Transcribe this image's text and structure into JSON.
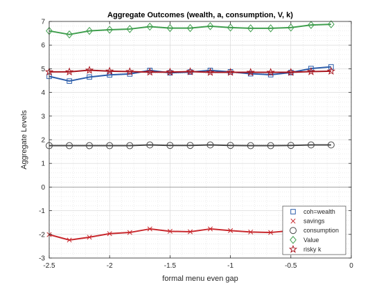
{
  "chart_data": {
    "type": "line",
    "title": "Aggregate Outcomes (wealth, a, consumption, V, k)",
    "xlabel": "formal menu even gap",
    "ylabel": "Aggregate Levels",
    "xlim": [
      -2.5,
      0
    ],
    "ylim": [
      -3,
      7
    ],
    "xticks": [
      -2.5,
      -2,
      -1.5,
      -1,
      -0.5,
      0
    ],
    "xtick_labels": [
      "-2.5",
      "-2",
      "-1.5",
      "-1",
      "-0.5",
      "0"
    ],
    "yticks": [
      -3,
      -2,
      -1,
      0,
      1,
      2,
      3,
      4,
      5,
      6,
      7
    ],
    "ytick_labels": [
      "-3",
      "-2",
      "-1",
      "0",
      "1",
      "2",
      "3",
      "4",
      "5",
      "6",
      "7"
    ],
    "grid": true,
    "minor_grid": true,
    "zero_line": true,
    "legend_position": "bottom-right",
    "x": [
      -2.5,
      -2.333,
      -2.167,
      -2.0,
      -1.833,
      -1.667,
      -1.5,
      -1.333,
      -1.167,
      -1.0,
      -0.833,
      -0.667,
      -0.5,
      -0.333,
      -0.167
    ],
    "series": [
      {
        "name": "coh=wealth",
        "color": "#2a5caa",
        "marker": "square",
        "values": [
          4.68,
          4.48,
          4.65,
          4.74,
          4.78,
          4.93,
          4.83,
          4.86,
          4.93,
          4.87,
          4.79,
          4.75,
          4.84,
          5.01,
          5.08
        ]
      },
      {
        "name": "savings",
        "color": "#c8282d",
        "marker": "x",
        "values": [
          -2.01,
          -2.24,
          -2.12,
          -1.97,
          -1.92,
          -1.77,
          -1.87,
          -1.89,
          -1.77,
          -1.84,
          -1.9,
          -1.92,
          -1.84,
          -1.69,
          -1.67
        ]
      },
      {
        "name": "consumption",
        "color": "#474747",
        "marker": "circle",
        "values": [
          1.75,
          1.75,
          1.75,
          1.75,
          1.75,
          1.78,
          1.76,
          1.76,
          1.78,
          1.76,
          1.75,
          1.75,
          1.76,
          1.78,
          1.78
        ]
      },
      {
        "name": "Value",
        "color": "#3f9e4d",
        "marker": "diamond",
        "values": [
          6.6,
          6.45,
          6.6,
          6.65,
          6.68,
          6.78,
          6.72,
          6.72,
          6.8,
          6.74,
          6.71,
          6.71,
          6.74,
          6.85,
          6.88
        ]
      },
      {
        "name": "risky k",
        "color": "#a8161f",
        "marker": "star",
        "values": [
          4.87,
          4.87,
          4.94,
          4.9,
          4.88,
          4.86,
          4.86,
          4.88,
          4.85,
          4.85,
          4.85,
          4.85,
          4.85,
          4.88,
          4.9
        ]
      }
    ]
  }
}
